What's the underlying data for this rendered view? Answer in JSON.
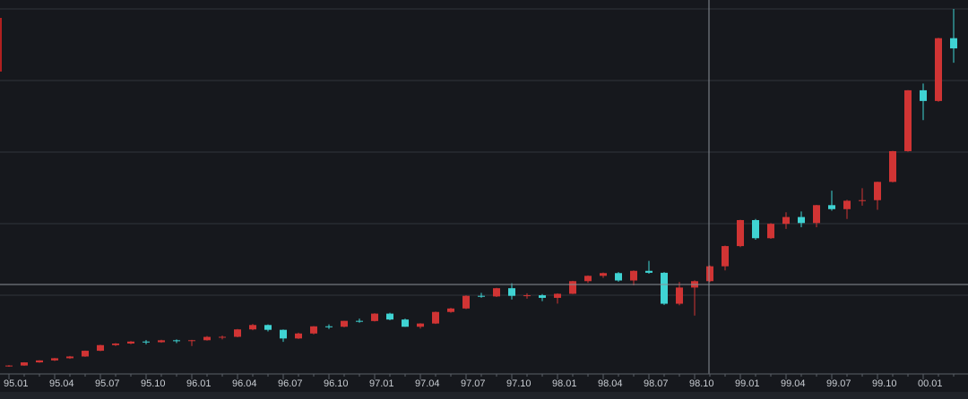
{
  "chart_data": {
    "type": "candlestick",
    "categories": [
      "95.01",
      null,
      null,
      "95.04",
      null,
      null,
      "95.07",
      null,
      null,
      "95.10",
      null,
      null,
      "96.01",
      null,
      null,
      "96.04",
      null,
      null,
      "96.07",
      null,
      null,
      "96.10",
      null,
      null,
      "97.01",
      null,
      null,
      "97.04",
      null,
      null,
      "97.07",
      null,
      null,
      "97.10",
      null,
      null,
      "98.01",
      null,
      null,
      "98.04",
      null,
      null,
      "98.07",
      null,
      null,
      "98.10",
      null,
      null,
      "99.01",
      null,
      null,
      "99.04",
      null,
      null,
      "99.07",
      null,
      null,
      "99.10",
      null,
      null,
      "00.01",
      null,
      null
    ],
    "open": [
      752,
      755,
      793,
      817,
      843,
      864,
      933,
      1001,
      1020,
      1044,
      1036,
      1059,
      1052,
      1060,
      1100,
      1101,
      1190,
      1243,
      1185,
      1081,
      1141,
      1227,
      1222,
      1293,
      1291,
      1380,
      1309,
      1222,
      1261,
      1400,
      1442,
      1594,
      1587,
      1686,
      1594,
      1601,
      1570,
      1619,
      1771,
      1835,
      1868,
      1779,
      1895,
      1872,
      1499,
      1694,
      1771,
      1950,
      2193,
      2506,
      2288,
      2461,
      2543,
      2471,
      2686,
      2638,
      2739,
      2746,
      2966,
      3336,
      4069,
      3940,
      4696
    ],
    "high": [
      760,
      795,
      820,
      846,
      870,
      935,
      1005,
      1025,
      1050,
      1062,
      1066,
      1070,
      1065,
      1110,
      1115,
      1195,
      1255,
      1250,
      1190,
      1150,
      1230,
      1250,
      1295,
      1320,
      1385,
      1390,
      1320,
      1265,
      1405,
      1450,
      1600,
      1630,
      1690,
      1745,
      1625,
      1615,
      1625,
      1775,
      1840,
      1875,
      1880,
      1900,
      2015,
      1880,
      1760,
      1780,
      1960,
      2200,
      2510,
      2520,
      2470,
      2600,
      2610,
      2690,
      2860,
      2750,
      2890,
      2970,
      3340,
      4070,
      4150,
      4700,
      5048
    ],
    "low": [
      740,
      752,
      788,
      810,
      835,
      860,
      928,
      990,
      1012,
      1010,
      1030,
      1025,
      990,
      1055,
      1070,
      1095,
      1180,
      1165,
      1040,
      1075,
      1130,
      1195,
      1215,
      1270,
      1285,
      1300,
      1220,
      1200,
      1255,
      1390,
      1435,
      1570,
      1580,
      1550,
      1560,
      1530,
      1500,
      1615,
      1750,
      1810,
      1765,
      1720,
      1860,
      1485,
      1480,
      1357,
      1760,
      1900,
      2180,
      2270,
      2280,
      2400,
      2420,
      2420,
      2620,
      2520,
      2680,
      2630,
      2960,
      3330,
      3710,
      3930,
      4400
    ],
    "close": [
      755,
      793,
      817,
      843,
      864,
      933,
      1001,
      1020,
      1044,
      1036,
      1059,
      1052,
      1060,
      1100,
      1101,
      1190,
      1243,
      1185,
      1081,
      1141,
      1227,
      1222,
      1293,
      1291,
      1380,
      1309,
      1222,
      1261,
      1400,
      1442,
      1594,
      1587,
      1686,
      1594,
      1601,
      1570,
      1619,
      1771,
      1835,
      1868,
      1779,
      1895,
      1872,
      1499,
      1694,
      1771,
      1950,
      2193,
      2506,
      2288,
      2461,
      2543,
      2471,
      2686,
      2638,
      2739,
      2746,
      2966,
      3336,
      4069,
      3940,
      4696,
      4573
    ],
    "up_color": "#d03434",
    "down_color": "#3fd3d3",
    "grid": true
  }
}
